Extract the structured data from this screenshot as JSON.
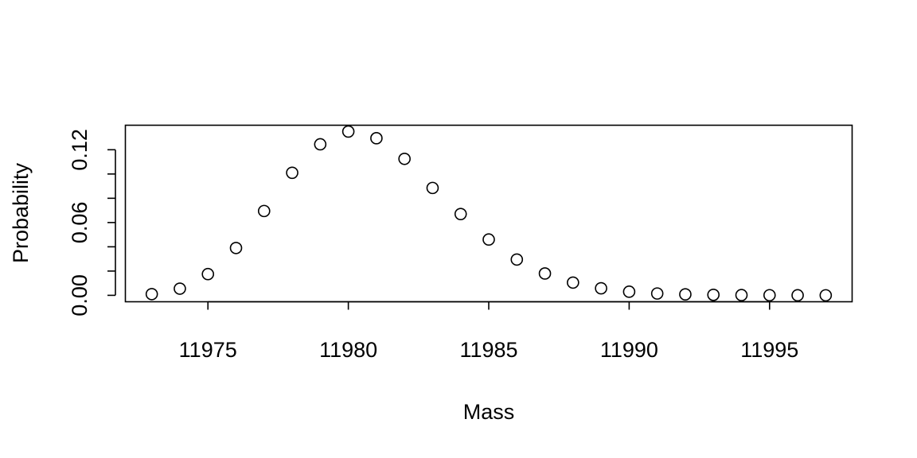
{
  "chart_data": {
    "type": "scatter",
    "title": "",
    "xlabel": "Mass",
    "ylabel": "Probability",
    "xlim": [
      11972.06,
      11997.94
    ],
    "ylim": [
      -0.0053,
      0.1402
    ],
    "x_ticks": [
      11975,
      11980,
      11985,
      11990,
      11995
    ],
    "x_tick_labels": [
      "11975",
      "11980",
      "11985",
      "11990",
      "11995"
    ],
    "y_ticks": [
      0.0,
      0.02,
      0.04,
      0.06,
      0.08,
      0.1,
      0.12
    ],
    "y_tick_labels": [
      "0.00",
      "",
      "",
      "0.06",
      "",
      "",
      "0.12"
    ],
    "grid": false,
    "legend": "none",
    "series": [
      {
        "marker": "open-circle",
        "x": [
          11973,
          11974,
          11975,
          11976,
          11977,
          11978,
          11979,
          11980,
          11981,
          11982,
          11983,
          11984,
          11985,
          11986,
          11987,
          11988,
          11989,
          11990,
          11991,
          11992,
          11993,
          11994,
          11995,
          11996,
          11997
        ],
        "y": [
          0.001,
          0.0055,
          0.0175,
          0.039,
          0.0695,
          0.101,
          0.1245,
          0.135,
          0.1295,
          0.1125,
          0.0885,
          0.067,
          0.046,
          0.0295,
          0.018,
          0.0105,
          0.0058,
          0.003,
          0.0015,
          0.0008,
          0.0004,
          0.0002,
          0.0001,
          5e-05,
          2e-05
        ]
      }
    ]
  }
}
